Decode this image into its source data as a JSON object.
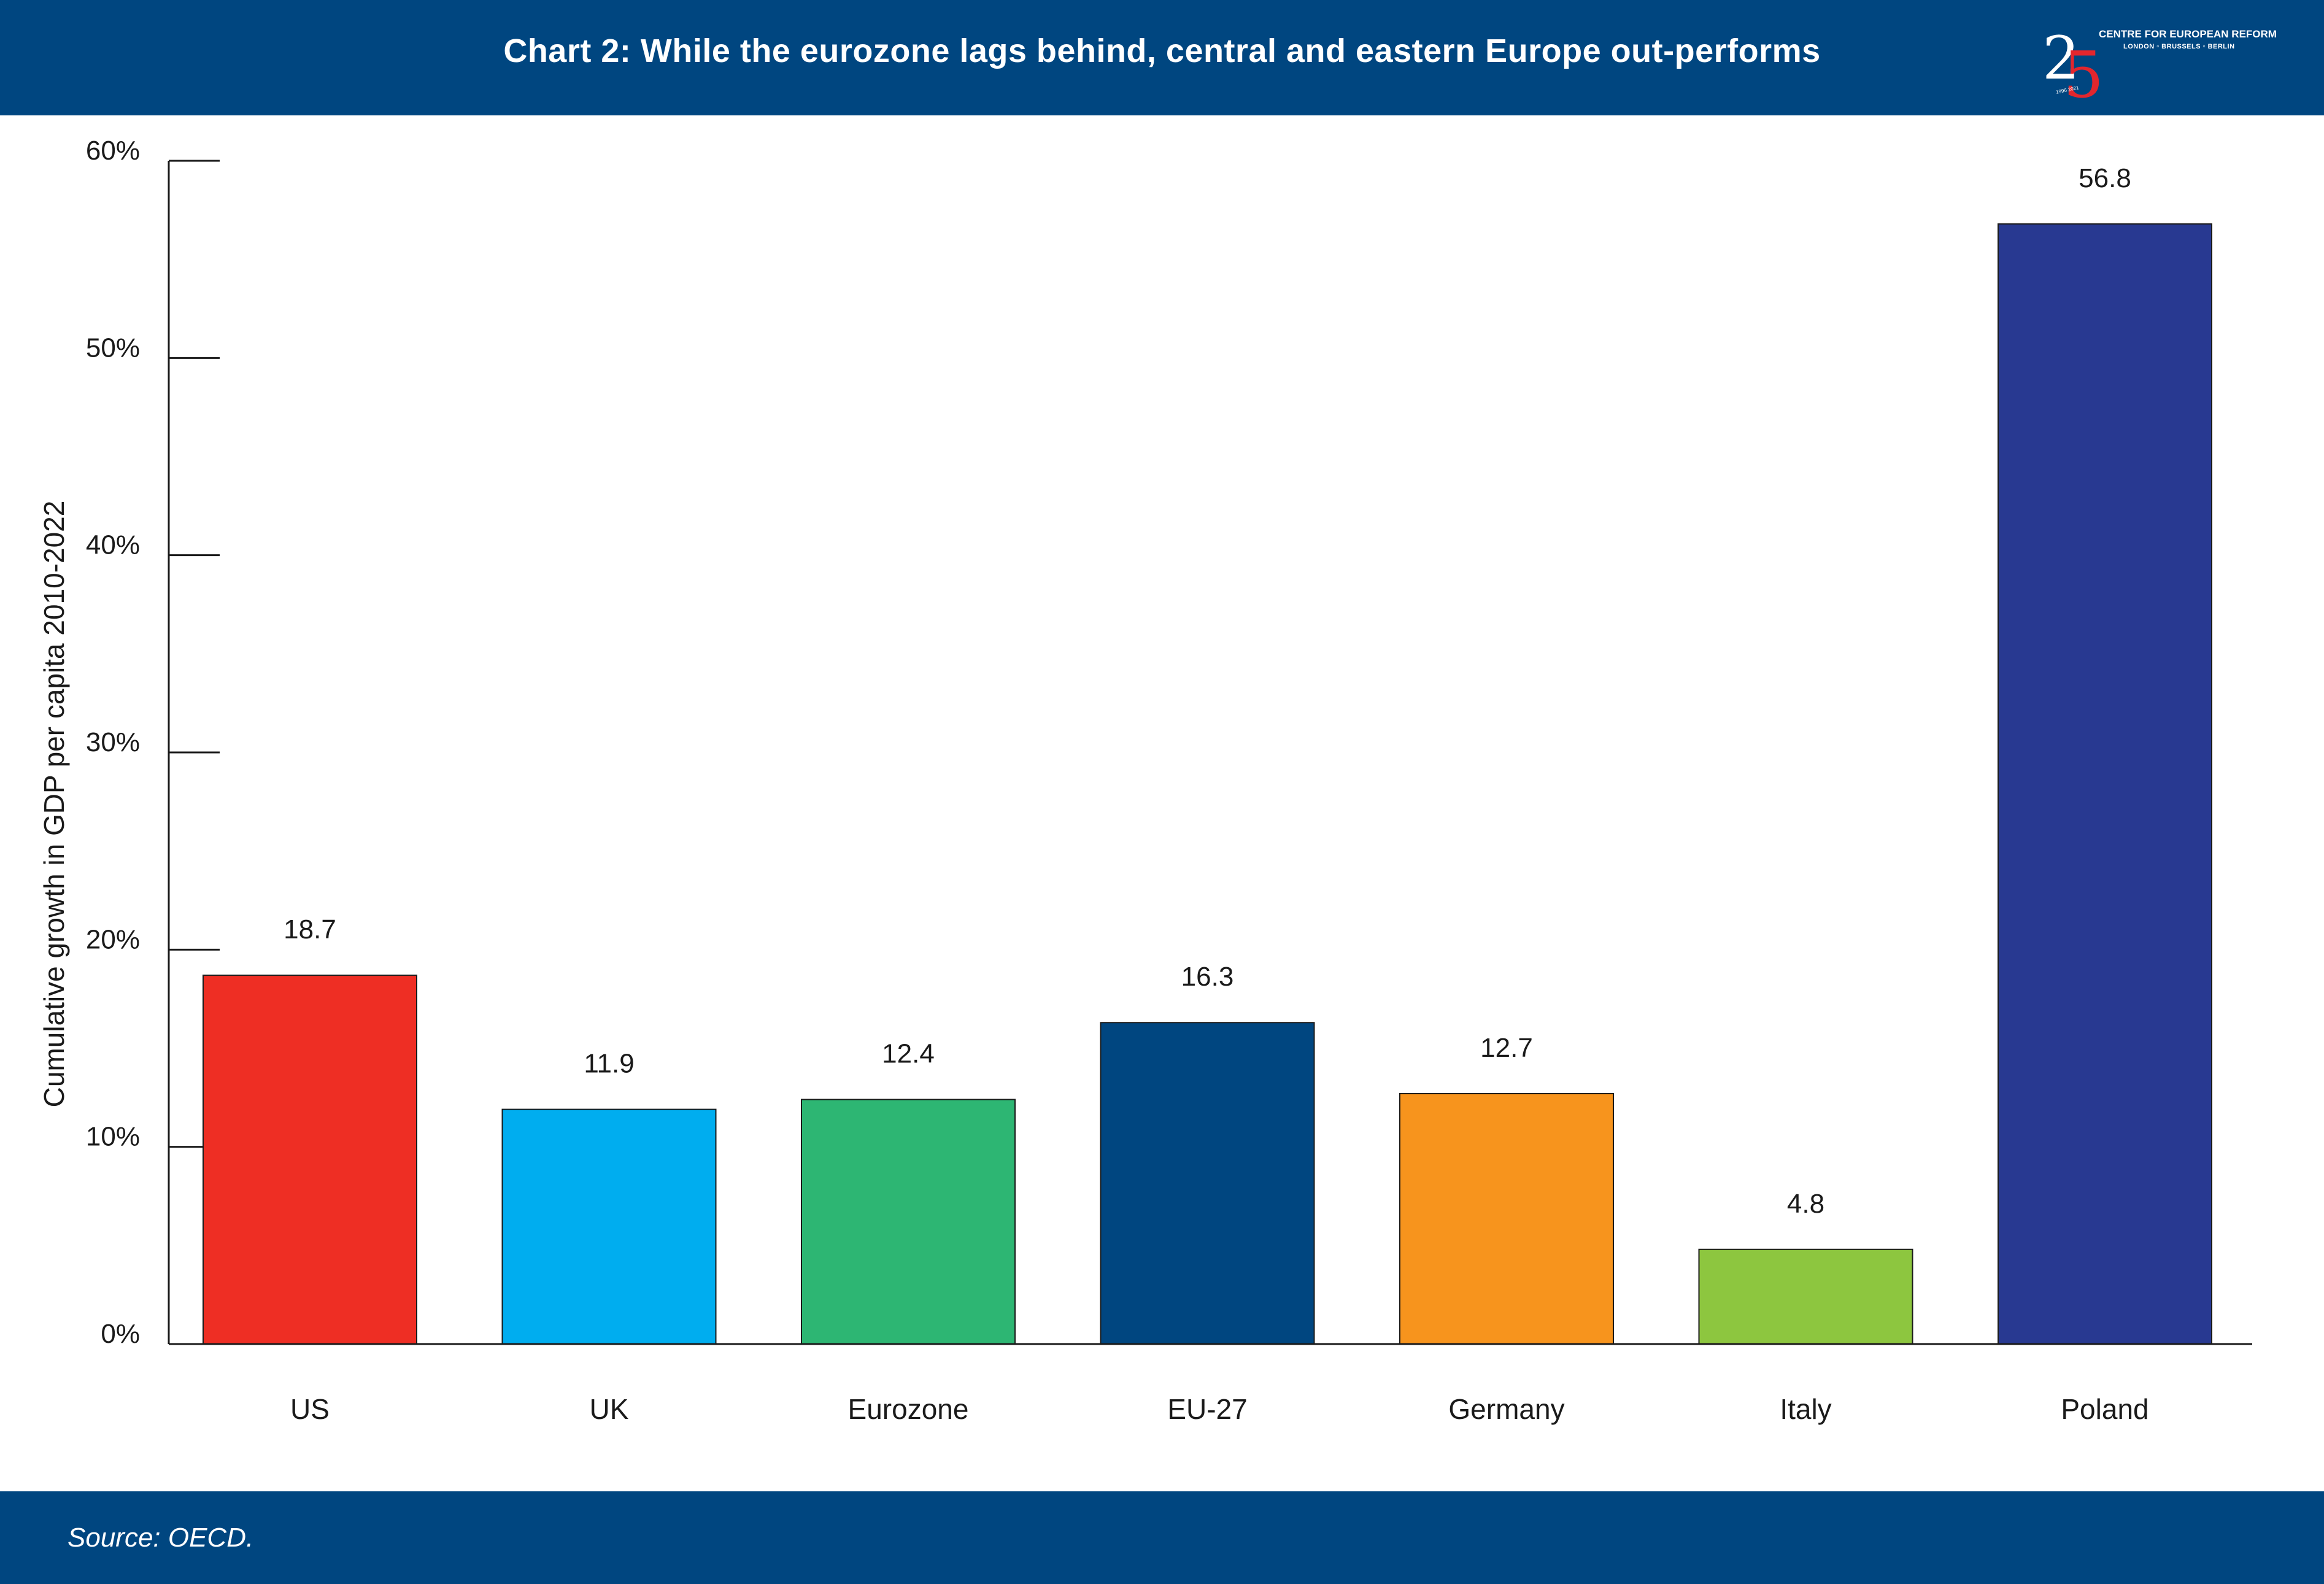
{
  "header": {
    "title": "Chart 2: While the eurozone lags behind, central and eastern Europe out-performs"
  },
  "logo": {
    "name": "CENTRE FOR EUROPEAN REFORM",
    "cities": "LONDON ▫ BRUSSELS ▫ BERLIN",
    "years": "1996 2021",
    "digit_two": "2",
    "digit_five": "5",
    "colors": {
      "two": "#ffffff",
      "five": "#e3262d"
    }
  },
  "footer": {
    "source": "Source: OECD."
  },
  "chart_data": {
    "type": "bar",
    "title": "Chart 2: While the eurozone lags behind, central and eastern Europe out-performs",
    "ylabel": "Cumulative growth in GDP per capita 2010-2022",
    "xlabel": "",
    "ylim": [
      0,
      60
    ],
    "yticks": [
      0,
      10,
      20,
      30,
      40,
      50,
      60
    ],
    "ytick_labels": [
      "0%",
      "10%",
      "20%",
      "30%",
      "40%",
      "50%",
      "60%"
    ],
    "categories": [
      "US",
      "UK",
      "Eurozone",
      "EU-27",
      "Germany",
      "Italy",
      "Poland"
    ],
    "values": [
      18.7,
      11.9,
      12.4,
      16.3,
      12.7,
      4.8,
      56.8
    ],
    "value_labels": [
      "18.7",
      "11.9",
      "12.4",
      "16.3",
      "12.7",
      "4.8",
      "56.8"
    ],
    "colors": [
      "#ee2e24",
      "#00adef",
      "#2db673",
      "#004680",
      "#f7941d",
      "#8dc63f",
      "#283991"
    ],
    "grid": false,
    "legend": "none"
  }
}
